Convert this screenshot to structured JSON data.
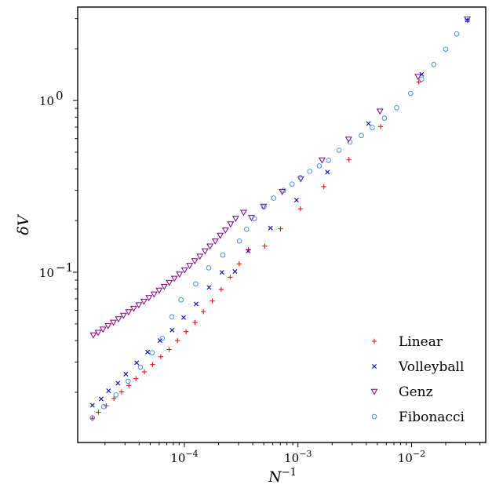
{
  "chart_data": {
    "type": "scatter",
    "xscale": "log",
    "yscale": "log",
    "xlabel": "N⁻¹",
    "ylabel": "δV",
    "xlim": [
      1.15e-05,
      0.045
    ],
    "ylim": [
      0.0102,
      3.5
    ],
    "x_ticks": [
      {
        "value": 0.0001,
        "base": "10",
        "exp": "−4"
      },
      {
        "value": 0.001,
        "base": "10",
        "exp": "−3"
      },
      {
        "value": 0.01,
        "base": "10",
        "exp": "−2"
      }
    ],
    "y_ticks": [
      {
        "value": 0.1,
        "base": "10",
        "exp": "−1"
      },
      {
        "value": 1,
        "base": "10",
        "exp": "0"
      }
    ],
    "grid": false,
    "legend_position": "bottom-right",
    "series": [
      {
        "name": "Linear",
        "marker": "plus",
        "color": "#e8000b",
        "points": [
          [
            1.55e-05,
            0.0141
          ],
          [
            1.75e-05,
            0.0153
          ],
          [
            2.05e-05,
            0.0167
          ],
          [
            2.4e-05,
            0.0184
          ],
          [
            2.8e-05,
            0.0201
          ],
          [
            3.25e-05,
            0.0219
          ],
          [
            3.75e-05,
            0.024
          ],
          [
            4.45e-05,
            0.0263
          ],
          [
            5.25e-05,
            0.029
          ],
          [
            6.2e-05,
            0.0322
          ],
          [
            7.35e-05,
            0.0355
          ],
          [
            8.7e-05,
            0.04
          ],
          [
            0.0001035,
            0.0451
          ],
          [
            0.000124,
            0.051
          ],
          [
            0.000147,
            0.059
          ],
          [
            0.000176,
            0.068
          ],
          [
            0.000211,
            0.0795
          ],
          [
            0.000253,
            0.0935
          ],
          [
            0.000304,
            0.112
          ],
          [
            0.000366,
            0.135
          ],
          [
            0.00051,
            0.142
          ],
          [
            0.000702,
            0.179
          ],
          [
            0.00105,
            0.234
          ],
          [
            0.00169,
            0.315
          ],
          [
            0.00281,
            0.453
          ],
          [
            0.00535,
            0.705
          ],
          [
            0.0116,
            1.28
          ],
          [
            0.031,
            2.93
          ]
        ]
      },
      {
        "name": "Volleyball",
        "marker": "cross",
        "color": "#0000c8",
        "points": [
          [
            1.55e-05,
            0.0168
          ],
          [
            1.85e-05,
            0.0183
          ],
          [
            2.15e-05,
            0.0204
          ],
          [
            2.6e-05,
            0.0226
          ],
          [
            3.05e-05,
            0.0255
          ],
          [
            3.8e-05,
            0.0297
          ],
          [
            4.75e-05,
            0.0343
          ],
          [
            6.1e-05,
            0.04
          ],
          [
            7.8e-05,
            0.046
          ],
          [
            9.85e-05,
            0.0545
          ],
          [
            0.000127,
            0.0653
          ],
          [
            0.000165,
            0.0816
          ],
          [
            0.000214,
            0.0998
          ],
          [
            0.000279,
            0.101
          ],
          [
            0.000365,
            0.133
          ],
          [
            0.000573,
            0.181
          ],
          [
            0.000971,
            0.263
          ],
          [
            0.00182,
            0.383
          ],
          [
            0.00418,
            0.734
          ],
          [
            0.0123,
            1.42
          ],
          [
            0.031,
            2.94
          ]
        ]
      },
      {
        "name": "Genz",
        "marker": "triangle-down",
        "color": "#800080",
        "points": [
          [
            1.58e-05,
            0.0431
          ],
          [
            1.74e-05,
            0.0446
          ],
          [
            1.92e-05,
            0.0466
          ],
          [
            2.13e-05,
            0.0488
          ],
          [
            2.37e-05,
            0.0511
          ],
          [
            2.63e-05,
            0.0535
          ],
          [
            2.91e-05,
            0.0561
          ],
          [
            3.23e-05,
            0.0588
          ],
          [
            3.58e-05,
            0.0616
          ],
          [
            3.97e-05,
            0.0646
          ],
          [
            4.4e-05,
            0.0677
          ],
          [
            4.88e-05,
            0.0711
          ],
          [
            5.41e-05,
            0.0746
          ],
          [
            6e-05,
            0.0785
          ],
          [
            6.65e-05,
            0.0826
          ],
          [
            7.37e-05,
            0.0871
          ],
          [
            8.17e-05,
            0.0921
          ],
          [
            9.06e-05,
            0.0975
          ],
          [
            0.0001005,
            0.1031
          ],
          [
            0.0001114,
            0.1095
          ],
          [
            0.0001235,
            0.1165
          ],
          [
            0.000137,
            0.124
          ],
          [
            0.000152,
            0.133
          ],
          [
            0.000168,
            0.142
          ],
          [
            0.000187,
            0.152
          ],
          [
            0.000207,
            0.164
          ],
          [
            0.00023,
            0.176
          ],
          [
            0.000255,
            0.191
          ],
          [
            0.000283,
            0.206
          ],
          [
            0.000332,
            0.223
          ],
          [
            0.00039,
            0.208
          ],
          [
            0.000497,
            0.242
          ],
          [
            0.000727,
            0.295
          ],
          [
            0.00106,
            0.35
          ],
          [
            0.00163,
            0.45
          ],
          [
            0.00279,
            0.595
          ],
          [
            0.00527,
            0.867
          ],
          [
            0.0114,
            1.38
          ],
          [
            0.031,
            2.98
          ]
        ]
      },
      {
        "name": "Fibonacci",
        "marker": "circle",
        "color": "#4a90e2",
        "points": [
          [
            1.55e-05,
            0.0142
          ],
          [
            1.95e-05,
            0.0165
          ],
          [
            2.5e-05,
            0.0193
          ],
          [
            3.2e-05,
            0.0232
          ],
          [
            4.1e-05,
            0.028
          ],
          [
            5.2e-05,
            0.034
          ],
          [
            6.4e-05,
            0.0412
          ],
          [
            7.75e-05,
            0.055
          ],
          [
            9.35e-05,
            0.069
          ],
          [
            0.000126,
            0.0855
          ],
          [
            0.000164,
            0.106
          ],
          [
            0.000218,
            0.126
          ],
          [
            0.000305,
            0.152
          ],
          [
            0.000353,
            0.178
          ],
          [
            0.000414,
            0.205
          ],
          [
            0.000502,
            0.24
          ],
          [
            0.000612,
            0.27
          ],
          [
            0.000748,
            0.3
          ],
          [
            0.000888,
            0.326
          ],
          [
            0.00105,
            0.356
          ],
          [
            0.00127,
            0.387
          ],
          [
            0.00154,
            0.416
          ],
          [
            0.00186,
            0.448
          ],
          [
            0.0023,
            0.513
          ],
          [
            0.00287,
            0.573
          ],
          [
            0.00362,
            0.625
          ],
          [
            0.00451,
            0.696
          ],
          [
            0.00577,
            0.79
          ],
          [
            0.0074,
            0.908
          ],
          [
            0.00981,
            1.1
          ],
          [
            0.0123,
            1.33
          ],
          [
            0.0157,
            1.62
          ],
          [
            0.02,
            1.99
          ],
          [
            0.025,
            2.44
          ],
          [
            0.031,
            2.99
          ]
        ]
      }
    ]
  }
}
